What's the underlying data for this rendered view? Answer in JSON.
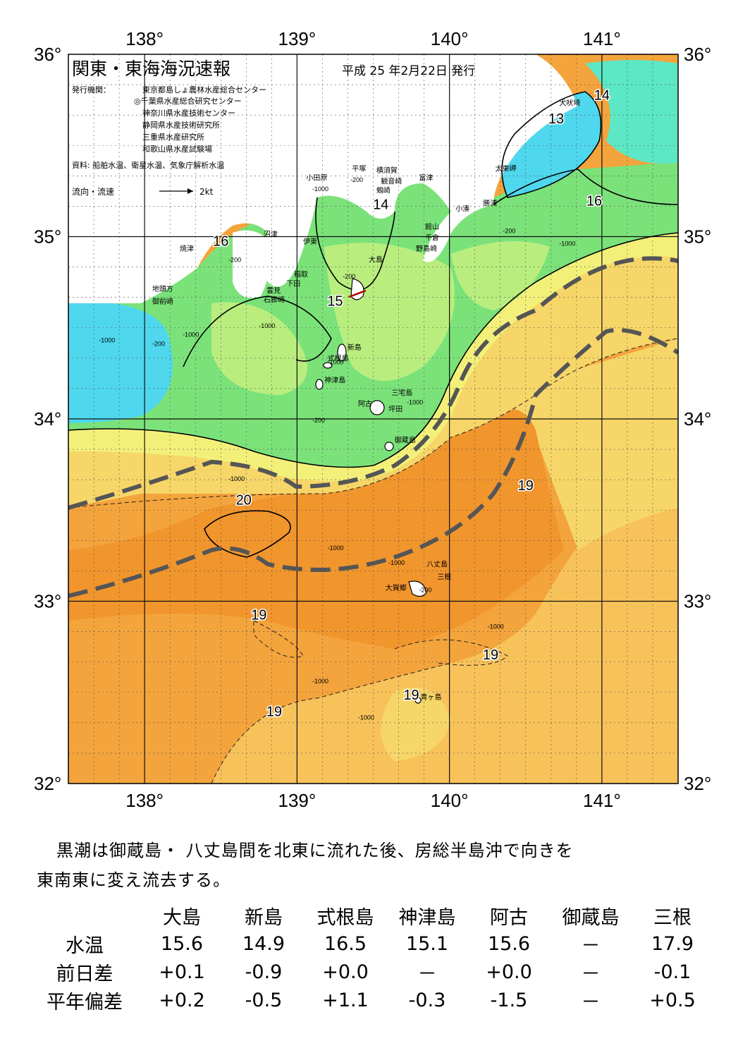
{
  "map": {
    "title": "関東・東海海況速報",
    "issue_date": "平成 25 年2月22日 発行",
    "publisher_label": "発行機関：",
    "publishers": [
      "東京都島しょ農林水産総合センター",
      "◎千葉県水産総合研究センター",
      "神奈川県水産技術センター",
      "静岡県水産技術研究所",
      "三重県水産研究所",
      "和歌山県水産試験場"
    ],
    "source": "資料: 船舶水温、衛星水温、気象庁解析水温",
    "legend_flow": "流向・流速",
    "legend_speed": "2kt",
    "lon_labels": [
      "138°",
      "139°",
      "140°",
      "141°"
    ],
    "lat_labels": [
      "36°",
      "35°",
      "34°",
      "33°",
      "32°"
    ],
    "lon_range": [
      137.5,
      141.5
    ],
    "lat_range": [
      32,
      36
    ],
    "isotherm_labels": [
      {
        "text": "14",
        "lon": 141.0,
        "lat": 35.75
      },
      {
        "text": "13",
        "lon": 140.7,
        "lat": 35.62
      },
      {
        "text": "14",
        "lon": 139.55,
        "lat": 35.15
      },
      {
        "text": "16",
        "lon": 140.95,
        "lat": 35.17
      },
      {
        "text": "16",
        "lon": 138.5,
        "lat": 34.95
      },
      {
        "text": "15",
        "lon": 139.25,
        "lat": 34.62
      },
      {
        "text": "20",
        "lon": 138.65,
        "lat": 33.53
      },
      {
        "text": "19",
        "lon": 140.5,
        "lat": 33.61
      },
      {
        "text": "19",
        "lon": 138.75,
        "lat": 32.9
      },
      {
        "text": "19",
        "lon": 140.27,
        "lat": 32.68
      },
      {
        "text": "19",
        "lon": 139.75,
        "lat": 32.46
      },
      {
        "text": "19",
        "lon": 138.85,
        "lat": 32.37
      }
    ],
    "depth_labels": [
      {
        "text": "-200",
        "lon": 138.55,
        "lat": 34.86
      },
      {
        "text": "-1000",
        "lon": 138.25,
        "lat": 34.45
      },
      {
        "text": "-200",
        "lon": 138.05,
        "lat": 34.4
      },
      {
        "text": "-1000",
        "lon": 137.7,
        "lat": 34.42
      },
      {
        "text": "-1000",
        "lon": 138.75,
        "lat": 34.5
      },
      {
        "text": "-1000",
        "lon": 138.55,
        "lat": 33.66
      },
      {
        "text": "-1000",
        "lon": 139.2,
        "lat": 33.28
      },
      {
        "text": "-1000",
        "lon": 139.6,
        "lat": 33.2
      },
      {
        "text": "-200",
        "lon": 139.8,
        "lat": 33.05
      },
      {
        "text": "-1000",
        "lon": 140.25,
        "lat": 32.85
      },
      {
        "text": "-1000",
        "lon": 139.1,
        "lat": 32.55
      },
      {
        "text": "-1000",
        "lon": 139.4,
        "lat": 32.35
      },
      {
        "text": "-1000",
        "lon": 140.72,
        "lat": 34.95
      },
      {
        "text": "-200",
        "lon": 140.35,
        "lat": 35.02
      },
      {
        "text": "-200",
        "lon": 139.35,
        "lat": 35.3
      },
      {
        "text": "-1000",
        "lon": 139.1,
        "lat": 35.25
      },
      {
        "text": "-200",
        "lon": 139.3,
        "lat": 34.77
      },
      {
        "text": "-1000",
        "lon": 139.2,
        "lat": 34.3
      },
      {
        "text": "-200",
        "lon": 139.1,
        "lat": 33.98
      },
      {
        "text": "-1000",
        "lon": 139.72,
        "lat": 34.08
      }
    ],
    "place_names": [
      {
        "text": "犬吠埼",
        "lon": 140.72,
        "lat": 35.72
      },
      {
        "text": "太東岬",
        "lon": 140.3,
        "lat": 35.36
      },
      {
        "text": "勝浦",
        "lon": 140.22,
        "lat": 35.17
      },
      {
        "text": "小湊",
        "lon": 140.04,
        "lat": 35.14
      },
      {
        "text": "富津",
        "lon": 139.8,
        "lat": 35.31
      },
      {
        "text": "横須賀",
        "lon": 139.52,
        "lat": 35.35
      },
      {
        "text": "観音崎",
        "lon": 139.55,
        "lat": 35.29
      },
      {
        "text": "平塚",
        "lon": 139.36,
        "lat": 35.36
      },
      {
        "text": "剱崎",
        "lon": 139.52,
        "lat": 35.24
      },
      {
        "text": "小田原",
        "lon": 139.06,
        "lat": 35.31
      },
      {
        "text": "館山",
        "lon": 139.84,
        "lat": 35.04
      },
      {
        "text": "千倉",
        "lon": 139.84,
        "lat": 34.98
      },
      {
        "text": "野島崎",
        "lon": 139.78,
        "lat": 34.92
      },
      {
        "text": "沼津",
        "lon": 138.78,
        "lat": 35.0
      },
      {
        "text": "伊東",
        "lon": 139.04,
        "lat": 34.96
      },
      {
        "text": "焼津",
        "lon": 138.23,
        "lat": 34.92
      },
      {
        "text": "大島",
        "lon": 139.47,
        "lat": 34.86
      },
      {
        "text": "稲取",
        "lon": 138.98,
        "lat": 34.78
      },
      {
        "text": "下田",
        "lon": 138.93,
        "lat": 34.73
      },
      {
        "text": "雲見",
        "lon": 138.8,
        "lat": 34.69
      },
      {
        "text": "石廊崎",
        "lon": 138.78,
        "lat": 34.64
      },
      {
        "text": "地頭方",
        "lon": 138.05,
        "lat": 34.7
      },
      {
        "text": "御前崎",
        "lon": 138.05,
        "lat": 34.63
      },
      {
        "text": "新島",
        "lon": 139.33,
        "lat": 34.38
      },
      {
        "text": "式根島",
        "lon": 139.2,
        "lat": 34.32
      },
      {
        "text": "神津島",
        "lon": 139.18,
        "lat": 34.2
      },
      {
        "text": "三宅島",
        "lon": 139.62,
        "lat": 34.13
      },
      {
        "text": "阿古",
        "lon": 139.4,
        "lat": 34.07
      },
      {
        "text": "坪田",
        "lon": 139.6,
        "lat": 34.04
      },
      {
        "text": "御蔵島",
        "lon": 139.64,
        "lat": 33.87
      },
      {
        "text": "八丈島",
        "lon": 139.85,
        "lat": 33.19
      },
      {
        "text": "三根",
        "lon": 139.92,
        "lat": 33.12
      },
      {
        "text": "大賀郷",
        "lon": 139.58,
        "lat": 33.06
      },
      {
        "text": "青ヶ島",
        "lon": 139.81,
        "lat": 32.46
      }
    ],
    "colors": {
      "cyan": "#4fd7ee",
      "aqua": "#5ce8c4",
      "green": "#7be27a",
      "light_green": "#b9ee7e",
      "yellow": "#f3f07a",
      "gold": "#f6d668",
      "light_orange": "#f8c25b",
      "orange": "#f4a43c",
      "deep_orange": "#f1952d",
      "land": "#ffffff",
      "kuroshio": "#555555"
    }
  },
  "summary": {
    "line1": "黒潮は御蔵島・ 八丈島間を北東に流れた後、房総半島沖で向きを",
    "line2": "東南東に変え流去する。"
  },
  "table": {
    "columns": [
      "大島",
      "新島",
      "式根島",
      "神津島",
      "阿古",
      "御蔵島",
      "三根"
    ],
    "rows": [
      {
        "label": "水温",
        "values": [
          "15.6",
          "14.9",
          "16.5",
          "15.1",
          "15.6",
          "－",
          "17.9"
        ]
      },
      {
        "label": "前日差",
        "values": [
          "+0.1",
          "-0.9",
          "+0.0",
          "－",
          "+0.0",
          "－",
          "-0.1"
        ]
      },
      {
        "label": "平年偏差",
        "values": [
          "+0.2",
          "-0.5",
          "+1.1",
          "-0.3",
          "-1.5",
          "－",
          "+0.5"
        ]
      }
    ]
  }
}
